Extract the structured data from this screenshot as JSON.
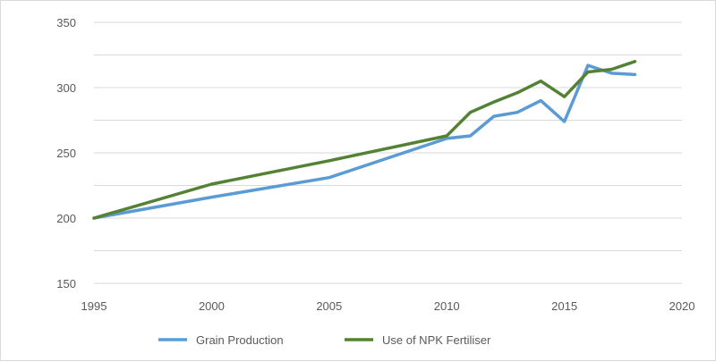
{
  "chart_data": {
    "type": "line",
    "title": "",
    "xlabel": "",
    "ylabel": "",
    "xlim": [
      1995,
      2020
    ],
    "ylim": [
      150,
      350
    ],
    "x_ticks": [
      "1995",
      "2000",
      "2005",
      "2010",
      "2015",
      "2020"
    ],
    "y_ticks": [
      "150",
      "200",
      "250",
      "300",
      "350"
    ],
    "grid": "horizontal",
    "legend_position": "bottom",
    "series": [
      {
        "name": "Grain Production",
        "color": "#5b9bd5",
        "points": [
          [
            1995,
            200
          ],
          [
            2000,
            216
          ],
          [
            2005,
            231
          ],
          [
            2010,
            261
          ],
          [
            2011,
            263
          ],
          [
            2012,
            278
          ],
          [
            2013,
            281
          ],
          [
            2014,
            290
          ],
          [
            2015,
            274
          ],
          [
            2016,
            317
          ],
          [
            2017,
            311
          ],
          [
            2018,
            310
          ]
        ]
      },
      {
        "name": "Use of NPK Fertiliser",
        "color": "#548235",
        "points": [
          [
            1995,
            200
          ],
          [
            2000,
            226
          ],
          [
            2005,
            244
          ],
          [
            2010,
            263
          ],
          [
            2011,
            281
          ],
          [
            2012,
            289
          ],
          [
            2013,
            296
          ],
          [
            2014,
            305
          ],
          [
            2015,
            293
          ],
          [
            2016,
            312
          ],
          [
            2017,
            314
          ],
          [
            2018,
            320
          ]
        ]
      }
    ]
  }
}
